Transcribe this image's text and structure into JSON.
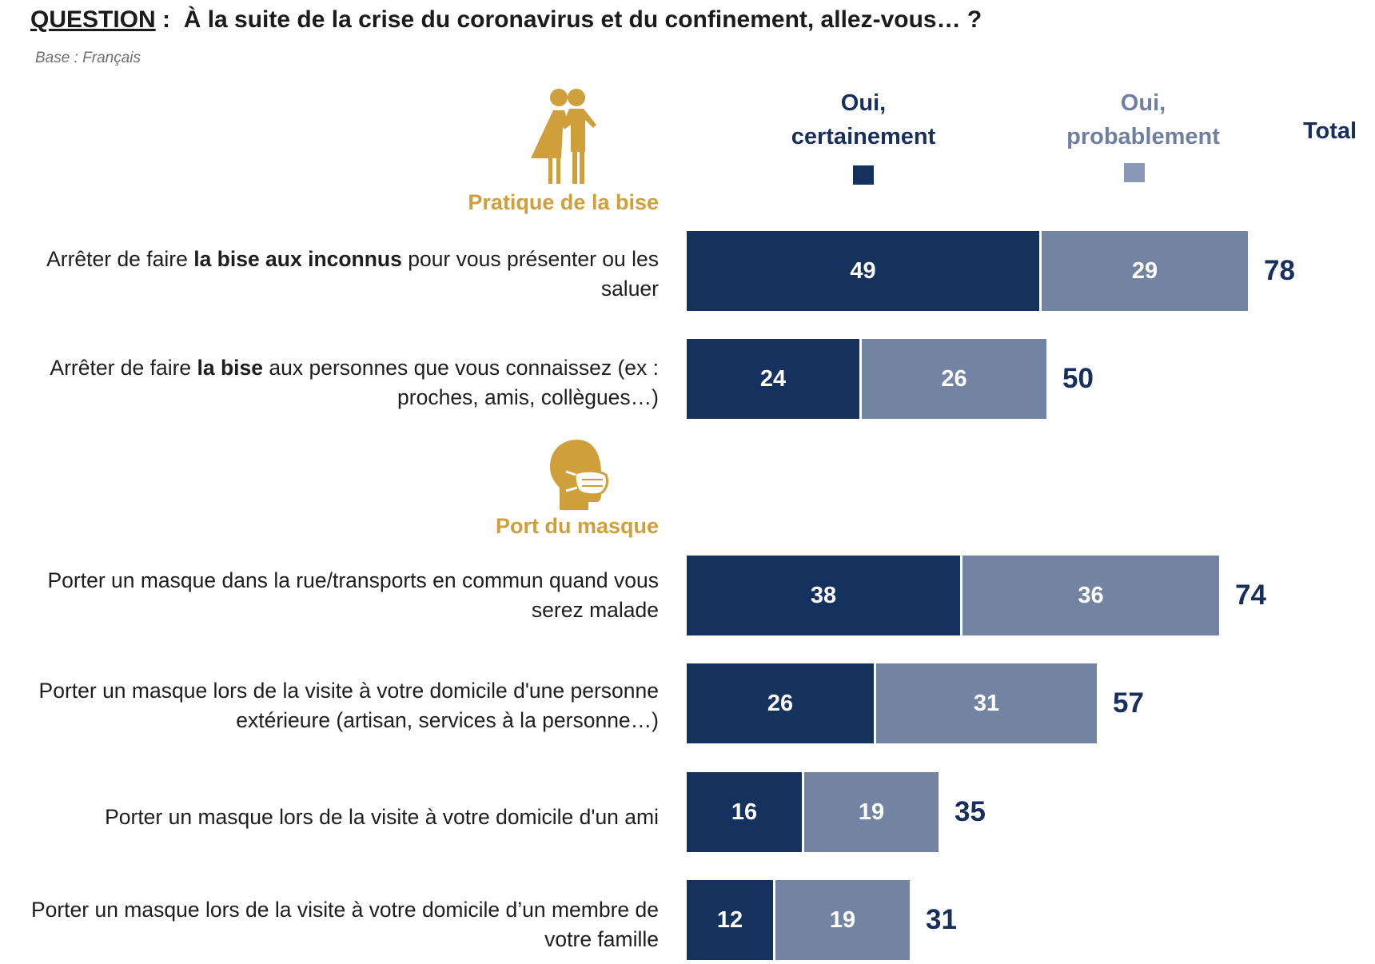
{
  "header": {
    "question_prefix": "QUESTION",
    "question_sep": " :  ",
    "question_text": "À la suite de la crise du coronavirus et du confinement, allez-vous… ?",
    "base": "Base : Français"
  },
  "legend": {
    "certain_line1": "Oui,",
    "certain_line2": "certainement",
    "probable_line1": "Oui,",
    "probable_line2": "probablement",
    "total": "Total"
  },
  "sections": {
    "bise": "Pratique de la bise",
    "masque": "Port du masque"
  },
  "colors": {
    "certain": "#15325f",
    "probable": "#7384a3",
    "accent": "#cf9f3c",
    "total_text": "#182f5e"
  },
  "icons": {
    "bise": "kissing-couple-icon",
    "masque": "face-mask-icon"
  },
  "rows": [
    {
      "label_pre": "Arrêter de faire ",
      "label_bold": "la bise aux inconnus",
      "label_post": " pour vous présenter ou les saluer",
      "certain": 49,
      "probable": 29,
      "total": 78
    },
    {
      "label_pre": "Arrêter de faire ",
      "label_bold": "la bise",
      "label_post": " aux personnes que vous connaissez (ex : proches, amis, collègues…)",
      "certain": 24,
      "probable": 26,
      "total": 50
    },
    {
      "label_pre": "Porter un masque dans la rue/transports en commun quand vous serez malade",
      "label_bold": "",
      "label_post": "",
      "certain": 38,
      "probable": 36,
      "total": 74
    },
    {
      "label_pre": "Porter un masque lors de la visite à votre domicile d'une personne extérieure (artisan, services à la personne…)",
      "label_bold": "",
      "label_post": "",
      "certain": 26,
      "probable": 31,
      "total": 57
    },
    {
      "label_pre": "Porter un masque lors de la visite à votre domicile d'un ami",
      "label_bold": "",
      "label_post": "",
      "certain": 16,
      "probable": 19,
      "total": 35
    },
    {
      "label_pre": "Porter un masque lors de la visite à votre domicile d’un membre de votre famille",
      "label_bold": "",
      "label_post": "",
      "certain": 12,
      "probable": 19,
      "total": 31
    }
  ],
  "chart_data": {
    "type": "bar",
    "orientation": "horizontal",
    "stacked": true,
    "categories": [
      "Arrêter de faire la bise aux inconnus pour vous présenter ou les saluer",
      "Arrêter de faire la bise aux personnes que vous connaissez (ex : proches, amis, collègues…)",
      "Porter un masque dans la rue/transports en commun quand vous serez malade",
      "Porter un masque lors de la visite à votre domicile d'une personne extérieure (artisan, services à la personne…)",
      "Porter un masque lors de la visite à votre domicile d'un ami",
      "Porter un masque lors de la visite à votre domicile d’un membre de votre famille"
    ],
    "series": [
      {
        "name": "Oui, certainement",
        "values": [
          49,
          24,
          38,
          26,
          16,
          12
        ]
      },
      {
        "name": "Oui, probablement",
        "values": [
          29,
          26,
          36,
          31,
          19,
          19
        ]
      }
    ],
    "totals": [
      78,
      50,
      74,
      57,
      35,
      31
    ],
    "totals_label": "Total",
    "title": "À la suite de la crise du coronavirus et du confinement, allez-vous… ?",
    "groups": [
      "Pratique de la bise",
      "Port du masque"
    ],
    "legend_position": "top",
    "grid": false
  }
}
